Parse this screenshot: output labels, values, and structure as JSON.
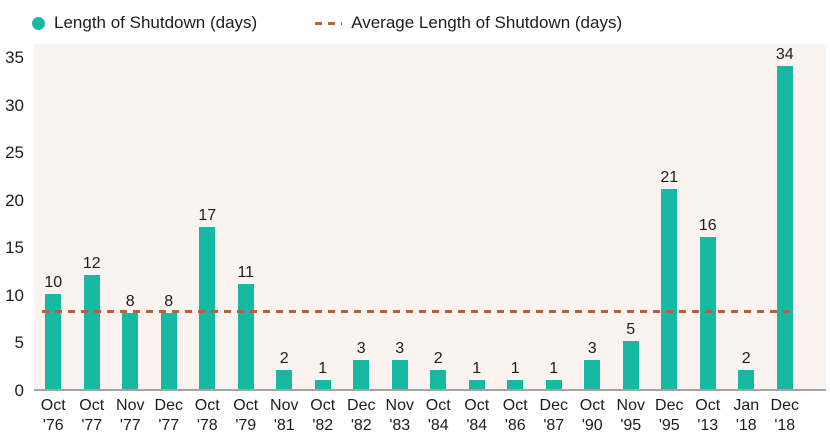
{
  "legend": {
    "items": [
      {
        "label": "Length of Shutdown (days)",
        "marker": "dot-icon"
      },
      {
        "label": "Average Length of Shutdown (days)",
        "marker": "dash-icon"
      }
    ]
  },
  "chart_data": {
    "type": "bar",
    "title": "",
    "xlabel": "",
    "ylabel": "",
    "series_name": "Length of Shutdown (days)",
    "categories": [
      "Oct '76",
      "Oct '77",
      "Nov '77",
      "Dec '77",
      "Oct '78",
      "Oct '79",
      "Nov '81",
      "Oct '82",
      "Dec '82",
      "Nov '83",
      "Oct '84",
      "Oct '84",
      "Oct '86",
      "Dec '87",
      "Oct '90",
      "Nov '95",
      "Dec '95",
      "Oct '13",
      "Jan '18",
      "Dec '18"
    ],
    "values": [
      10,
      12,
      8,
      8,
      17,
      11,
      2,
      1,
      3,
      3,
      2,
      1,
      1,
      1,
      3,
      5,
      21,
      16,
      2,
      34
    ],
    "average_line": {
      "label": "Average Length of Shutdown (days)",
      "value": 8.05
    },
    "ylim": [
      0,
      35
    ],
    "yticks": [
      0,
      5,
      10,
      15,
      20,
      25,
      30,
      35
    ],
    "grid": "off",
    "legend_position": "top-left",
    "colors": {
      "bar": "#17b9a3",
      "average_line": "#c05e2c",
      "plot_background": "#faf3f0",
      "axis_line": "#a3a3a3",
      "text": "#1d1d1d"
    }
  }
}
